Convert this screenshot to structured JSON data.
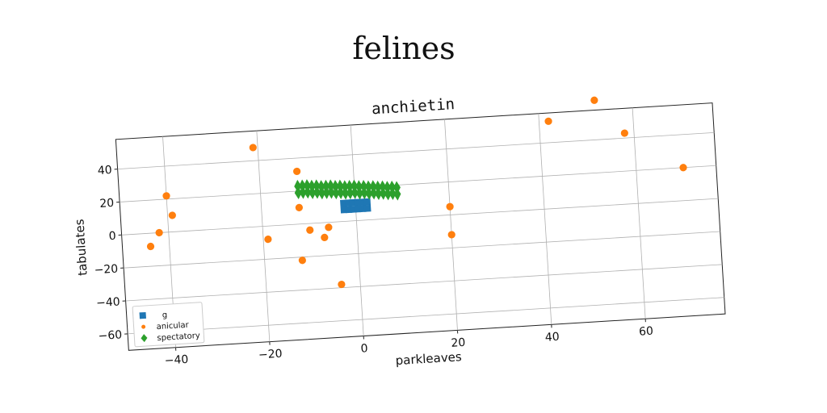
{
  "figure": {
    "suptitle": "felines"
  },
  "chart_data": {
    "type": "scatter",
    "title": "anchietin",
    "xlabel": "parkleaves",
    "ylabel": "tabulates",
    "xlim": [
      -50,
      77
    ],
    "ylim": [
      -70,
      58
    ],
    "xticks": [
      -40,
      -20,
      0,
      20,
      40,
      60
    ],
    "yticks": [
      -60,
      -40,
      -20,
      0,
      20,
      40
    ],
    "grid": true,
    "legend_position": "lower-left",
    "series": [
      {
        "name": "g",
        "marker": "square",
        "color": "#1f77b4",
        "x": [
          -2.5,
          -1.5,
          -0.5,
          0.5,
          1.5,
          2.5,
          -2.5,
          -1.5,
          -0.5,
          0.5,
          1.5,
          2.5
        ],
        "y": [
          11,
          11,
          11,
          11,
          11,
          11,
          7,
          7,
          7,
          7,
          7,
          7
        ]
      },
      {
        "name": "anicular",
        "marker": "circle",
        "color": "#ff7f0e",
        "x": [
          -21,
          -12,
          -12,
          -10,
          -7,
          -6,
          -19,
          -12,
          -4,
          -40,
          -39,
          -42,
          -44,
          20,
          20,
          42,
          52,
          58,
          70
        ],
        "y": [
          48,
          32,
          10,
          -4,
          -9,
          -3,
          -8,
          -22,
          -38,
          22,
          10,
          0,
          -8,
          5,
          -12,
          53,
          64,
          43,
          20
        ]
      },
      {
        "name": "spectatory",
        "marker": "thin_diamond",
        "color": "#2ca02c",
        "x": [
          -12,
          -11,
          -10,
          -9,
          -8,
          -7,
          -6,
          -5,
          -4,
          -3,
          -2,
          -1,
          0,
          1,
          2,
          3,
          4,
          5,
          6,
          7,
          8,
          9,
          -12,
          -11,
          -10,
          -9,
          -8,
          -7,
          -6,
          -5,
          -4,
          -3,
          -2,
          -1,
          0,
          1,
          2,
          3,
          4,
          5,
          6,
          7,
          8,
          9
        ],
        "y": [
          23,
          23,
          23,
          22.5,
          22.5,
          22,
          22,
          22,
          21.5,
          21.5,
          21,
          21,
          21,
          20.5,
          20.5,
          20,
          20,
          19.5,
          19.5,
          19,
          19,
          18.5,
          19,
          19,
          19,
          18.5,
          18.5,
          18,
          18,
          18,
          17.5,
          17.5,
          17,
          17,
          17,
          16.5,
          16.5,
          16,
          16,
          15.5,
          15.5,
          15,
          15,
          14.5
        ]
      }
    ]
  }
}
